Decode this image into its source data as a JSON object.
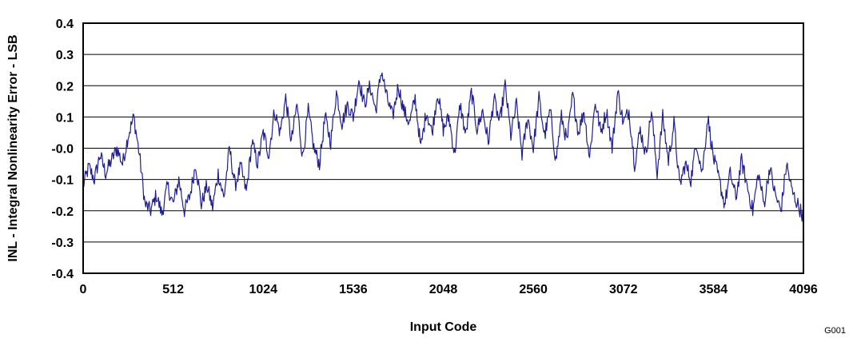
{
  "figure_id": "G001",
  "colors": {
    "series": "#1f1f8f",
    "axis": "#000000"
  },
  "chart_data": {
    "type": "line",
    "title": "",
    "xlabel": "Input Code",
    "ylabel": "INL - Integral Nonlinearity Error - LSB",
    "xlim": [
      0,
      4096
    ],
    "ylim": [
      -0.4,
      0.4
    ],
    "grid": true,
    "x_ticks": [
      0,
      512,
      1024,
      1536,
      2048,
      2560,
      3072,
      3584,
      4096
    ],
    "x_tick_labels": [
      "0",
      "512",
      "1024",
      "1536",
      "2048",
      "2560",
      "3072",
      "3584",
      "4096"
    ],
    "y_ticks": [
      -0.4,
      -0.3,
      -0.2,
      -0.1,
      0.0,
      0.1,
      0.2,
      0.3,
      0.4
    ],
    "y_tick_labels": [
      "-0.4",
      "-0.3",
      "-0.2",
      "-0.1",
      "-0.0",
      "0.1",
      "0.2",
      "0.3",
      "0.4"
    ],
    "series": [
      {
        "x": [
          0,
          32,
          64,
          96,
          128,
          160,
          192,
          224,
          256,
          288,
          320,
          352,
          384,
          416,
          448,
          480,
          512,
          544,
          576,
          608,
          640,
          672,
          704,
          736,
          768,
          800,
          832,
          864,
          896,
          928,
          960,
          992,
          1024,
          1056,
          1088,
          1120,
          1152,
          1184,
          1216,
          1248,
          1280,
          1312,
          1344,
          1376,
          1408,
          1440,
          1472,
          1504,
          1536,
          1568,
          1600,
          1632,
          1664,
          1696,
          1728,
          1760,
          1792,
          1824,
          1856,
          1888,
          1920,
          1952,
          1984,
          2016,
          2048,
          2080,
          2112,
          2144,
          2176,
          2208,
          2240,
          2272,
          2304,
          2336,
          2368,
          2400,
          2432,
          2464,
          2496,
          2528,
          2560,
          2592,
          2624,
          2656,
          2688,
          2720,
          2752,
          2784,
          2816,
          2848,
          2880,
          2912,
          2944,
          2976,
          3008,
          3040,
          3072,
          3104,
          3136,
          3168,
          3200,
          3232,
          3264,
          3296,
          3328,
          3360,
          3392,
          3424,
          3456,
          3488,
          3520,
          3552,
          3584,
          3616,
          3648,
          3680,
          3712,
          3744,
          3776,
          3808,
          3840,
          3872,
          3904,
          3936,
          3968,
          4000,
          4032,
          4064,
          4096
        ],
        "y": [
          -0.12,
          -0.06,
          -0.1,
          -0.02,
          -0.08,
          -0.04,
          0.0,
          -0.05,
          0.04,
          0.1,
          -0.02,
          -0.18,
          -0.2,
          -0.15,
          -0.21,
          -0.12,
          -0.18,
          -0.1,
          -0.2,
          -0.15,
          -0.05,
          -0.18,
          -0.12,
          -0.19,
          -0.08,
          -0.16,
          0.0,
          -0.12,
          -0.06,
          -0.14,
          0.02,
          -0.05,
          0.05,
          -0.02,
          0.12,
          0.05,
          0.16,
          0.02,
          0.14,
          -0.03,
          0.12,
          0.0,
          -0.05,
          0.1,
          0.02,
          0.18,
          0.08,
          0.14,
          0.1,
          0.22,
          0.14,
          0.2,
          0.12,
          0.25,
          0.16,
          0.1,
          0.2,
          0.12,
          0.08,
          0.16,
          0.0,
          0.12,
          0.05,
          0.18,
          0.06,
          0.1,
          -0.02,
          0.14,
          0.04,
          0.18,
          0.06,
          0.12,
          0.02,
          0.16,
          0.08,
          0.2,
          0.04,
          0.14,
          -0.02,
          0.1,
          0.0,
          0.16,
          0.04,
          0.12,
          -0.04,
          0.1,
          0.02,
          0.17,
          0.05,
          0.12,
          -0.03,
          0.15,
          0.05,
          0.12,
          0.0,
          0.18,
          0.08,
          0.12,
          -0.05,
          0.06,
          -0.02,
          0.12,
          -0.08,
          0.1,
          -0.04,
          0.08,
          -0.12,
          -0.05,
          -0.1,
          0.02,
          -0.08,
          0.1,
          -0.03,
          -0.1,
          -0.18,
          -0.08,
          -0.16,
          -0.04,
          -0.12,
          -0.2,
          -0.08,
          -0.18,
          -0.06,
          -0.15,
          -0.2,
          -0.05,
          -0.14,
          -0.18,
          -0.22
        ]
      }
    ]
  }
}
